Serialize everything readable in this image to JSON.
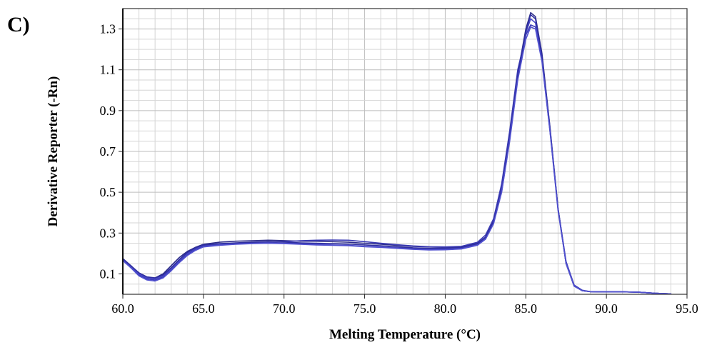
{
  "panel_label": "C)",
  "chart_data": {
    "type": "line",
    "title": "",
    "xlabel": "Melting Temperature (°C)",
    "ylabel": "Derivative Reporter (-Rn)",
    "xlim": [
      60.0,
      95.0
    ],
    "ylim": [
      0.0,
      1.4
    ],
    "x_ticks": [
      "60.0",
      "65.0",
      "70.0",
      "75.0",
      "80.0",
      "85.0",
      "90.0",
      "95.0"
    ],
    "y_ticks": [
      "0.1",
      "0.3",
      "0.5",
      "0.7",
      "0.9",
      "1.1",
      "1.3"
    ],
    "grid": true,
    "x": [
      60.0,
      60.5,
      61.0,
      61.5,
      62.0,
      62.5,
      63.0,
      63.5,
      64.0,
      64.5,
      65.0,
      66.0,
      67.0,
      68.0,
      69.0,
      70.0,
      71.0,
      72.0,
      73.0,
      74.0,
      75.0,
      76.0,
      77.0,
      78.0,
      79.0,
      80.0,
      81.0,
      82.0,
      82.5,
      83.0,
      83.5,
      84.0,
      84.5,
      85.0,
      85.3,
      85.6,
      86.0,
      86.5,
      87.0,
      87.5,
      88.0,
      88.5,
      89.0,
      90.0,
      91.0,
      92.0,
      93.0,
      94.0
    ],
    "series": [
      {
        "color": "#2d2d8a",
        "values": [
          0.17,
          0.14,
          0.1,
          0.08,
          0.08,
          0.1,
          0.14,
          0.18,
          0.21,
          0.23,
          0.245,
          0.255,
          0.26,
          0.262,
          0.265,
          0.263,
          0.26,
          0.26,
          0.258,
          0.255,
          0.25,
          0.245,
          0.24,
          0.235,
          0.232,
          0.23,
          0.232,
          0.25,
          0.28,
          0.36,
          0.52,
          0.78,
          1.08,
          1.3,
          1.38,
          1.36,
          1.18,
          0.82,
          0.42,
          0.15,
          0.04,
          0.018,
          0.013,
          0.012,
          0.012,
          0.01,
          0.005,
          0.002
        ]
      },
      {
        "color": "#3b3bb5",
        "values": [
          0.17,
          0.13,
          0.095,
          0.075,
          0.07,
          0.085,
          0.12,
          0.16,
          0.195,
          0.22,
          0.235,
          0.245,
          0.25,
          0.252,
          0.255,
          0.258,
          0.262,
          0.265,
          0.266,
          0.265,
          0.258,
          0.25,
          0.243,
          0.237,
          0.233,
          0.232,
          0.235,
          0.255,
          0.29,
          0.37,
          0.54,
          0.8,
          1.1,
          1.27,
          1.32,
          1.31,
          1.15,
          0.8,
          0.42,
          0.16,
          0.045,
          0.02,
          0.013,
          0.012,
          0.012,
          0.01,
          0.005,
          0.002
        ]
      },
      {
        "color": "#4848c8",
        "values": [
          0.17,
          0.135,
          0.1,
          0.08,
          0.075,
          0.09,
          0.125,
          0.165,
          0.2,
          0.225,
          0.24,
          0.245,
          0.248,
          0.25,
          0.252,
          0.25,
          0.248,
          0.245,
          0.242,
          0.24,
          0.235,
          0.232,
          0.228,
          0.224,
          0.22,
          0.222,
          0.226,
          0.245,
          0.275,
          0.35,
          0.5,
          0.76,
          1.06,
          1.28,
          1.35,
          1.33,
          1.16,
          0.81,
          0.42,
          0.155,
          0.042,
          0.018,
          0.013,
          0.012,
          0.012,
          0.01,
          0.005,
          0.002
        ]
      },
      {
        "color": "#2f2fa0",
        "values": [
          0.175,
          0.14,
          0.105,
          0.085,
          0.08,
          0.095,
          0.13,
          0.17,
          0.205,
          0.228,
          0.242,
          0.248,
          0.252,
          0.255,
          0.258,
          0.256,
          0.252,
          0.25,
          0.248,
          0.246,
          0.242,
          0.238,
          0.233,
          0.228,
          0.225,
          0.226,
          0.23,
          0.248,
          0.28,
          0.355,
          0.51,
          0.77,
          1.07,
          1.29,
          1.37,
          1.35,
          1.17,
          0.815,
          0.42,
          0.15,
          0.04,
          0.018,
          0.013,
          0.012,
          0.012,
          0.01,
          0.005,
          0.002
        ]
      },
      {
        "color": "#5252d0",
        "values": [
          0.165,
          0.13,
          0.09,
          0.07,
          0.065,
          0.08,
          0.115,
          0.155,
          0.19,
          0.215,
          0.232,
          0.24,
          0.245,
          0.248,
          0.25,
          0.248,
          0.245,
          0.242,
          0.24,
          0.238,
          0.233,
          0.23,
          0.225,
          0.22,
          0.217,
          0.218,
          0.222,
          0.24,
          0.27,
          0.345,
          0.5,
          0.75,
          1.05,
          1.25,
          1.31,
          1.3,
          1.14,
          0.8,
          0.41,
          0.15,
          0.04,
          0.018,
          0.013,
          0.012,
          0.012,
          0.01,
          0.005,
          0.002
        ]
      }
    ]
  }
}
